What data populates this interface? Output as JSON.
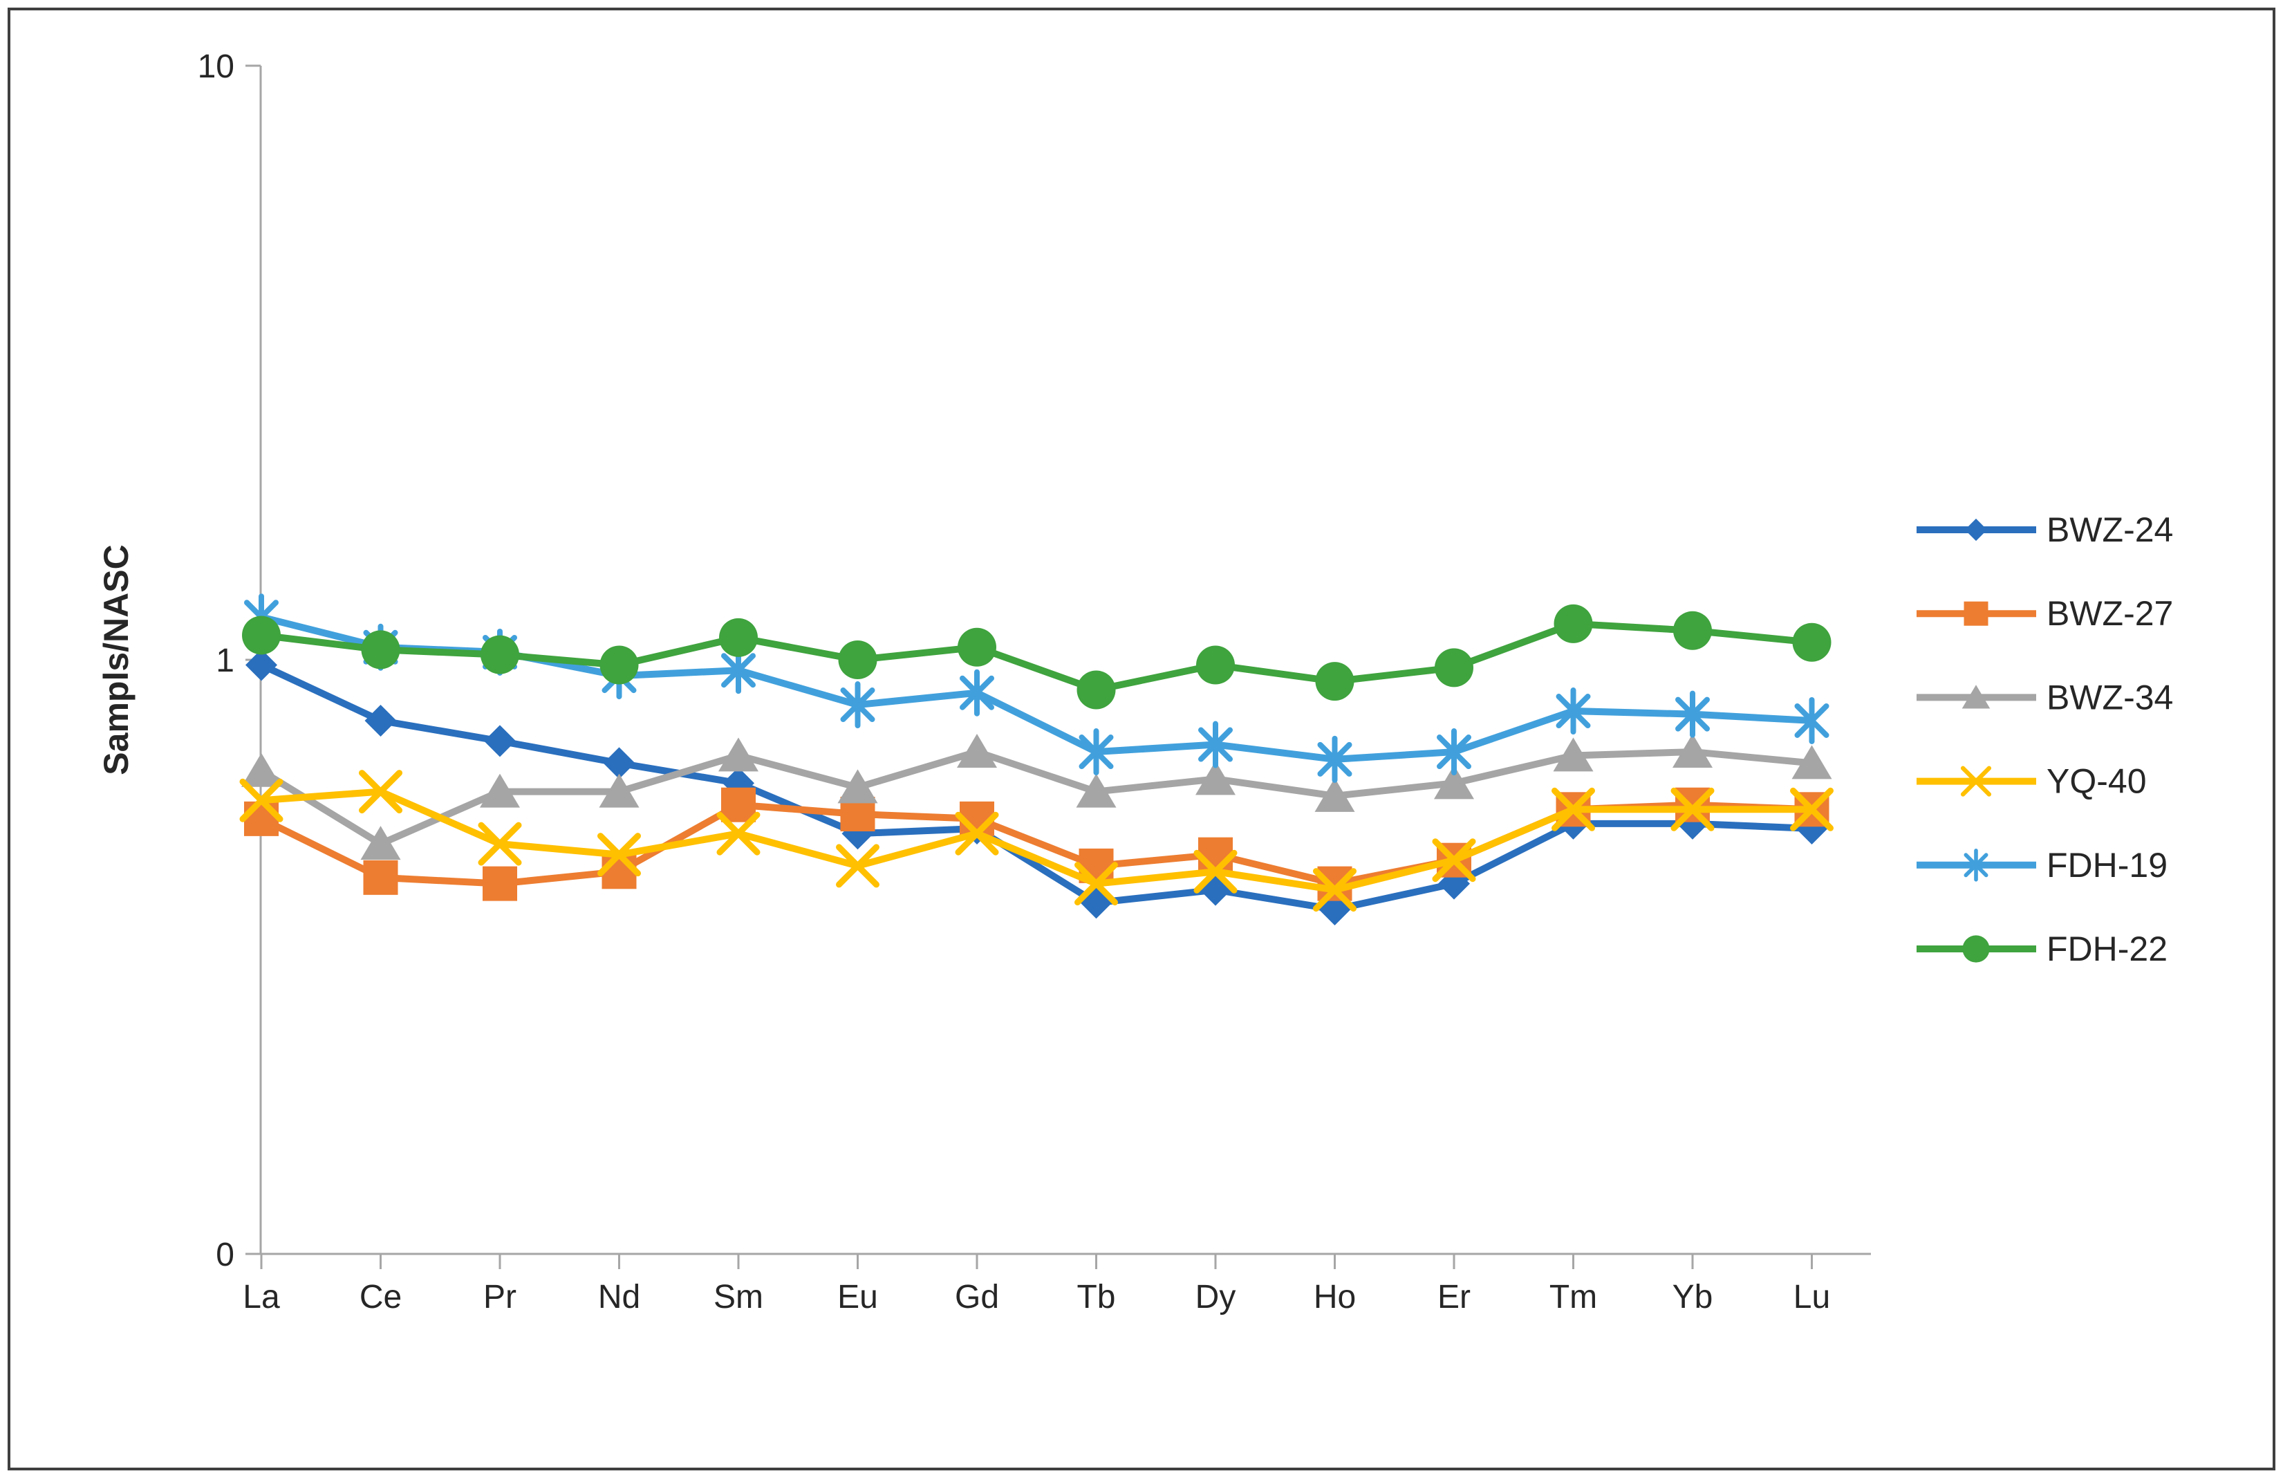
{
  "figure": {
    "background": "#FFFFFF",
    "border_color": "#3F3F3F",
    "axis_color": "#A6A6A6",
    "text_color": "#262626"
  },
  "chart_data": {
    "type": "line",
    "title": "",
    "xlabel": "",
    "ylabel": "Sampls/NASC",
    "y_scale": "log10",
    "ylim": [
      0.1,
      10
    ],
    "y_ticks": [
      {
        "label": "10",
        "value": 10
      },
      {
        "label": "1",
        "value": 1
      },
      {
        "label": "0",
        "value": 0.1
      }
    ],
    "grid": false,
    "legend_position": "right",
    "categories": [
      "La",
      "Ce",
      "Pr",
      "Nd",
      "Sm",
      "Eu",
      "Gd",
      "Tb",
      "Dy",
      "Ho",
      "Er",
      "Tm",
      "Yb",
      "Lu"
    ],
    "series": [
      {
        "name": "BWZ-24",
        "color": "#2A6FBE",
        "marker": "diamond",
        "values": [
          0.98,
          0.79,
          0.73,
          0.67,
          0.62,
          0.51,
          0.52,
          0.39,
          0.41,
          0.38,
          0.42,
          0.53,
          0.53,
          0.52
        ]
      },
      {
        "name": "BWZ-27",
        "color": "#ED7D31",
        "marker": "square",
        "values": [
          0.54,
          0.43,
          0.42,
          0.44,
          0.57,
          0.55,
          0.54,
          0.45,
          0.47,
          0.42,
          0.46,
          0.56,
          0.57,
          0.56
        ]
      },
      {
        "name": "BWZ-34",
        "color": "#A5A5A5",
        "marker": "triangle",
        "values": [
          0.65,
          0.49,
          0.6,
          0.6,
          0.69,
          0.61,
          0.7,
          0.6,
          0.63,
          0.59,
          0.62,
          0.69,
          0.7,
          0.67
        ]
      },
      {
        "name": "YQ-40",
        "color": "#FFC000",
        "marker": "x",
        "values": [
          0.58,
          0.6,
          0.49,
          0.47,
          0.51,
          0.45,
          0.51,
          0.42,
          0.44,
          0.41,
          0.46,
          0.56,
          0.56,
          0.56
        ]
      },
      {
        "name": "FDH-19",
        "color": "#41A0DC",
        "marker": "asterisk",
        "values": [
          1.18,
          1.05,
          1.03,
          0.94,
          0.96,
          0.84,
          0.88,
          0.7,
          0.72,
          0.68,
          0.7,
          0.82,
          0.81,
          0.79
        ]
      },
      {
        "name": "FDH-22",
        "color": "#3FA33E",
        "marker": "circle",
        "values": [
          1.1,
          1.04,
          1.02,
          0.98,
          1.09,
          1.0,
          1.05,
          0.89,
          0.98,
          0.92,
          0.97,
          1.15,
          1.12,
          1.07
        ]
      }
    ]
  }
}
